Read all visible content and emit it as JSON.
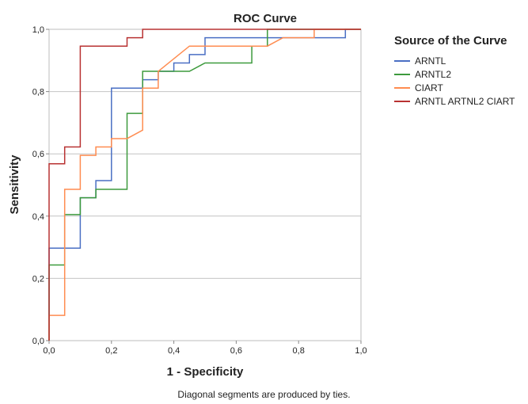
{
  "chart_data": {
    "type": "line",
    "title": "ROC Curve",
    "xlabel": "1 - Specificity",
    "ylabel": "Sensitivity",
    "xlim": [
      0,
      1
    ],
    "ylim": [
      0,
      1
    ],
    "x_ticks": [
      "0,0",
      "0,2",
      "0,4",
      "0,6",
      "0,8",
      "1,0"
    ],
    "y_ticks": [
      "0,0",
      "0,2",
      "0,4",
      "0,6",
      "0,8",
      "1,0"
    ],
    "grid": "horizontal",
    "legend_title": "Source of the Curve",
    "legend_position": "right",
    "footnote": "Diagonal segments are produced by ties.",
    "series": [
      {
        "name": "ARNTL",
        "color": "#4a6fc4",
        "points": [
          [
            0,
            0
          ],
          [
            0,
            0.297
          ],
          [
            0.1,
            0.297
          ],
          [
            0.1,
            0.459
          ],
          [
            0.15,
            0.459
          ],
          [
            0.15,
            0.514
          ],
          [
            0.2,
            0.514
          ],
          [
            0.2,
            0.811
          ],
          [
            0.3,
            0.811
          ],
          [
            0.3,
            0.838
          ],
          [
            0.35,
            0.838
          ],
          [
            0.35,
            0.865
          ],
          [
            0.4,
            0.865
          ],
          [
            0.4,
            0.892
          ],
          [
            0.45,
            0.892
          ],
          [
            0.45,
            0.919
          ],
          [
            0.5,
            0.919
          ],
          [
            0.5,
            0.973
          ],
          [
            0.95,
            0.973
          ],
          [
            0.95,
            1
          ],
          [
            1,
            1
          ]
        ]
      },
      {
        "name": "ARNTL2",
        "color": "#3d9a3d",
        "points": [
          [
            0,
            0
          ],
          [
            0,
            0.243
          ],
          [
            0.05,
            0.243
          ],
          [
            0.05,
            0.405
          ],
          [
            0.1,
            0.405
          ],
          [
            0.1,
            0.459
          ],
          [
            0.15,
            0.459
          ],
          [
            0.15,
            0.486
          ],
          [
            0.25,
            0.486
          ],
          [
            0.25,
            0.73
          ],
          [
            0.3,
            0.73
          ],
          [
            0.3,
            0.865
          ],
          [
            0.45,
            0.865
          ],
          [
            0.5,
            0.892
          ],
          [
            0.65,
            0.892
          ],
          [
            0.65,
            0.946
          ],
          [
            0.7,
            0.946
          ],
          [
            0.7,
            1
          ],
          [
            1,
            1
          ]
        ]
      },
      {
        "name": "CIART",
        "color": "#ff8c50",
        "points": [
          [
            0,
            0
          ],
          [
            0,
            0.081
          ],
          [
            0.05,
            0.081
          ],
          [
            0.05,
            0.486
          ],
          [
            0.1,
            0.486
          ],
          [
            0.1,
            0.595
          ],
          [
            0.15,
            0.595
          ],
          [
            0.15,
            0.622
          ],
          [
            0.2,
            0.622
          ],
          [
            0.2,
            0.649
          ],
          [
            0.25,
            0.649
          ],
          [
            0.3,
            0.676
          ],
          [
            0.3,
            0.811
          ],
          [
            0.35,
            0.811
          ],
          [
            0.35,
            0.865
          ],
          [
            0.45,
            0.946
          ],
          [
            0.7,
            0.946
          ],
          [
            0.75,
            0.973
          ],
          [
            0.85,
            0.973
          ],
          [
            0.85,
            1
          ],
          [
            1,
            1
          ]
        ]
      },
      {
        "name": "ARNTL ARTNL2 CIART",
        "color": "#b83232",
        "points": [
          [
            0,
            0
          ],
          [
            0,
            0.568
          ],
          [
            0.05,
            0.568
          ],
          [
            0.05,
            0.622
          ],
          [
            0.1,
            0.622
          ],
          [
            0.1,
            0.946
          ],
          [
            0.25,
            0.946
          ],
          [
            0.25,
            0.973
          ],
          [
            0.3,
            0.973
          ],
          [
            0.3,
            1
          ],
          [
            1,
            1
          ]
        ]
      }
    ]
  }
}
